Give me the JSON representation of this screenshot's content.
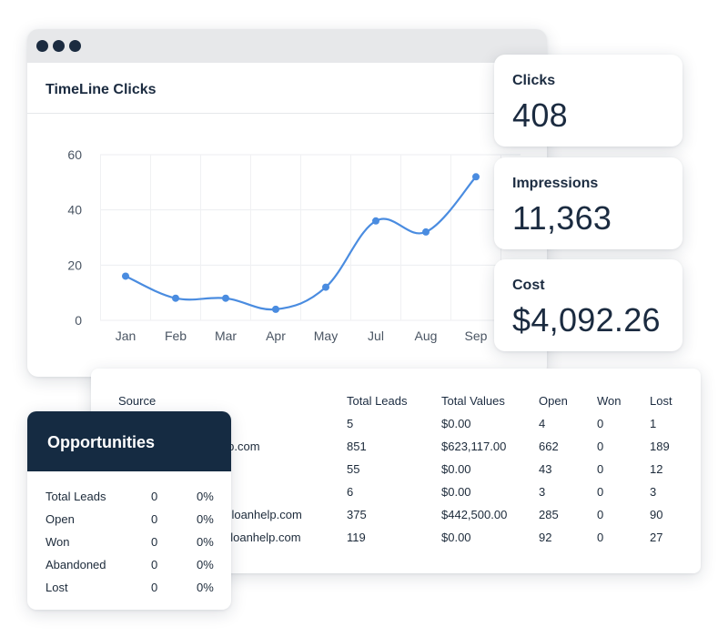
{
  "chart_window": {
    "title": "TimeLine Clicks"
  },
  "chart_data": {
    "type": "line",
    "title": "TimeLine Clicks",
    "categories": [
      "Jan",
      "Feb",
      "Mar",
      "Apr",
      "May",
      "Jul",
      "Aug",
      "Sep"
    ],
    "values": [
      16,
      8,
      8,
      4,
      12,
      36,
      32,
      52
    ],
    "ylim": [
      0,
      60
    ],
    "yticks": [
      0,
      20,
      40,
      60
    ],
    "grid": true,
    "line_color": "#4a8ce0"
  },
  "stats": {
    "clicks": {
      "label": "Clicks",
      "value": "408"
    },
    "impressions": {
      "label": "Impressions",
      "value": "11,363"
    },
    "cost": {
      "label": "Cost",
      "value": "$4,092.26"
    }
  },
  "leads_table": {
    "headers": [
      "Source",
      "Total Leads",
      "Total Values",
      "Open",
      "Won",
      "Lost"
    ],
    "rows": [
      [
        "",
        "5",
        "$0.00",
        "4",
        "0",
        "1"
      ],
      [
        "elp.com",
        "851",
        "$623,117.00",
        "662",
        "0",
        "189"
      ],
      [
        "",
        "55",
        "$0.00",
        "43",
        "0",
        "12"
      ],
      [
        "",
        "6",
        "$0.00",
        "3",
        "0",
        "3"
      ],
      [
        "neloanhelp.com",
        "375",
        "$442,500.00",
        "285",
        "0",
        "90"
      ],
      [
        "eloanhelp.com",
        "119",
        "$0.00",
        "92",
        "0",
        "27"
      ]
    ]
  },
  "opportunities": {
    "title": "Opportunities",
    "rows": [
      [
        "Total Leads",
        "0",
        "0%"
      ],
      [
        "Open",
        "0",
        "0%"
      ],
      [
        "Won",
        "0",
        "0%"
      ],
      [
        "Abandoned",
        "0",
        "0%"
      ],
      [
        "Lost",
        "0",
        "0%"
      ]
    ]
  },
  "colors": {
    "navy": "#152b42",
    "accent_line": "#4a8ce0",
    "window_bar": "#e7e8ea"
  }
}
